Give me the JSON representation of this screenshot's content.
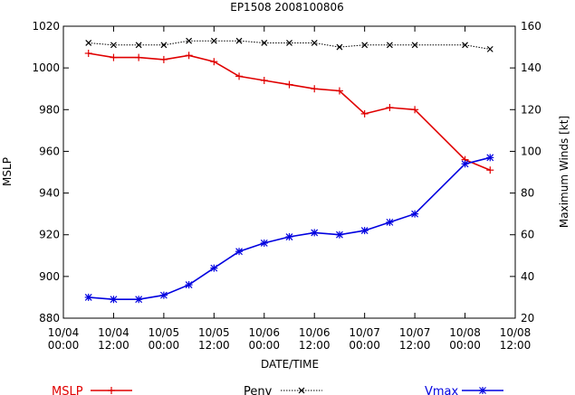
{
  "chart_data": {
    "type": "line",
    "title": "EP1508 2008100806",
    "xlabel": "DATE/TIME",
    "ylabel_left": "MSLP",
    "ylabel_right": "Maximum Winds [kt]",
    "x_range_hours": [
      0,
      108
    ],
    "x_tick_labels": [
      [
        "10/04",
        "00:00"
      ],
      [
        "10/04",
        "12:00"
      ],
      [
        "10/05",
        "00:00"
      ],
      [
        "10/05",
        "12:00"
      ],
      [
        "10/06",
        "00:00"
      ],
      [
        "10/06",
        "12:00"
      ],
      [
        "10/07",
        "00:00"
      ],
      [
        "10/07",
        "12:00"
      ],
      [
        "10/08",
        "00:00"
      ],
      [
        "10/08",
        "12:00"
      ]
    ],
    "ylim_left": [
      880,
      1020
    ],
    "y_ticks_left": [
      880,
      900,
      920,
      940,
      960,
      980,
      1000,
      1020
    ],
    "ylim_right": [
      20,
      160
    ],
    "y_ticks_right": [
      20,
      40,
      60,
      80,
      100,
      120,
      140,
      160
    ],
    "legend_placement": "bottom",
    "x_hours": [
      6,
      12,
      18,
      24,
      30,
      36,
      42,
      48,
      54,
      60,
      66,
      72,
      78,
      84,
      90,
      96,
      102
    ],
    "series": [
      {
        "name": "MSLP",
        "axis": "left",
        "color": "#e00000",
        "marker": "plus",
        "dash": "solid",
        "values": [
          1007,
          1005,
          1005,
          1004,
          1006,
          1003,
          996,
          994,
          992,
          990,
          989,
          978,
          981,
          980,
          null,
          956,
          951
        ]
      },
      {
        "name": "Penv",
        "axis": "left",
        "color": "#000000",
        "marker": "cross",
        "dash": "dotted",
        "values": [
          1012,
          1011,
          1011,
          1011,
          1013,
          1013,
          1013,
          1012,
          1012,
          1012,
          1010,
          1011,
          1011,
          1011,
          null,
          1011,
          1009
        ]
      },
      {
        "name": "Vmax",
        "axis": "right",
        "color": "#0000e0",
        "marker": "star",
        "dash": "solid",
        "values": [
          30,
          29,
          29,
          31,
          36,
          44,
          52,
          56,
          59,
          61,
          60,
          62,
          66,
          70,
          null,
          94,
          97
        ]
      }
    ]
  }
}
